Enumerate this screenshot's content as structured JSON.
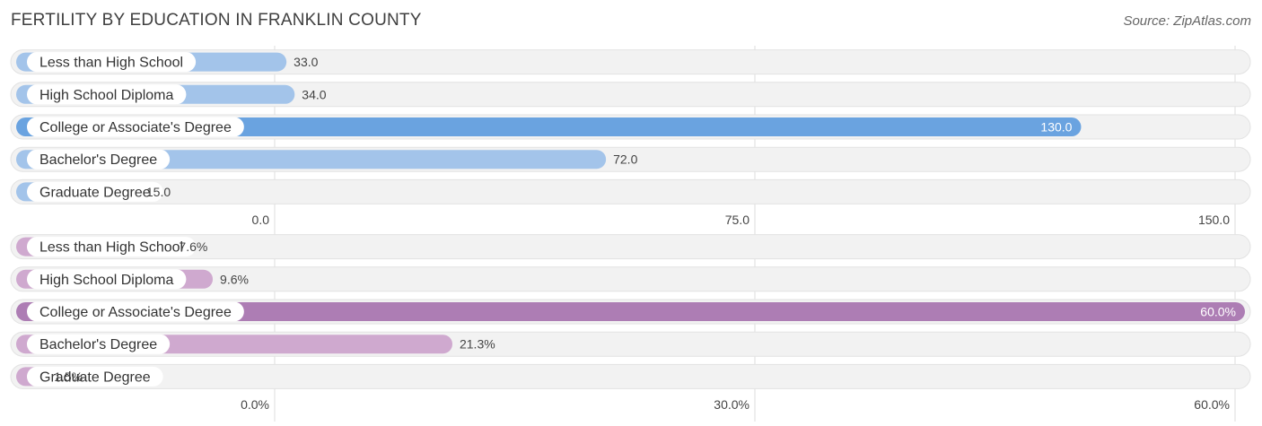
{
  "title": "FERTILITY BY EDUCATION IN FRANKLIN COUNTY",
  "source": "Source: ZipAtlas.com",
  "chart_data": [
    {
      "type": "bar",
      "orientation": "horizontal",
      "categories": [
        "Less than High School",
        "High School Diploma",
        "College or Associate's Degree",
        "Bachelor's Degree",
        "Graduate Degree"
      ],
      "values": [
        33.0,
        34.0,
        130.0,
        72.0,
        15.0
      ],
      "value_labels": [
        "33.0",
        "34.0",
        "130.0",
        "72.0",
        "15.0"
      ],
      "xlim": [
        0,
        150
      ],
      "ticks": [
        0,
        75,
        150
      ],
      "tick_labels": [
        "0.0",
        "75.0",
        "150.0"
      ],
      "colors": {
        "bar": "#a3c4ea",
        "highlight": "#6aa3e0"
      },
      "highlight_index": 2
    },
    {
      "type": "bar",
      "orientation": "horizontal",
      "categories": [
        "Less than High School",
        "High School Diploma",
        "College or Associate's Degree",
        "Bachelor's Degree",
        "Graduate Degree"
      ],
      "values": [
        7.6,
        9.6,
        60.0,
        21.3,
        1.5
      ],
      "value_labels": [
        "7.6%",
        "9.6%",
        "60.0%",
        "21.3%",
        "1.5%"
      ],
      "xlim": [
        0,
        60
      ],
      "ticks": [
        0,
        30,
        60
      ],
      "tick_labels": [
        "0.0%",
        "30.0%",
        "60.0%"
      ],
      "colors": {
        "bar": "#cfa9cf",
        "highlight": "#ad7db4"
      },
      "highlight_index": 2
    }
  ]
}
